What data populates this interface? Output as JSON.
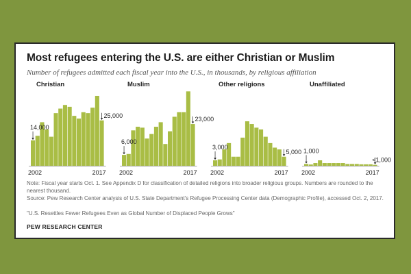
{
  "title": "Most refugees entering the U.S. are either Christian or Muslim",
  "subtitle": "Number of refugees admitted each fiscal year into the U.S., in thousands, by religious affiliation",
  "note": "Note: Fiscal year starts Oct. 1. See Appendix D for classification of detailed religions into broader religious groups. Numbers are rounded to the nearest thousand.",
  "source": "Source: Pew Research Center analysis of U.S. State Department's Refugee Processing Center data (Demographic Profile), accessed Oct. 2, 2017.",
  "report": "\"U.S. Resettles Fewer Refugees Even as Global Number of Displaced People Grows\"",
  "brand": "PEW RESEARCH CENTER",
  "colors": {
    "bar": "#a9bd45",
    "text": "#222222",
    "axis": "#888888",
    "background": "#7f963e"
  },
  "chart_data": [
    {
      "type": "bar",
      "title": "Christian",
      "x": [
        2002,
        2003,
        2004,
        2005,
        2006,
        2007,
        2008,
        2009,
        2010,
        2011,
        2012,
        2013,
        2014,
        2015,
        2016,
        2017
      ],
      "values": [
        14,
        16.5,
        24,
        20,
        16,
        29,
        31.5,
        33.5,
        32.5,
        27.5,
        26,
        29.5,
        29,
        32,
        38.5,
        25
      ],
      "annotations": [
        {
          "year": 2002,
          "label": "14,000"
        },
        {
          "year": 2017,
          "label": "25,000"
        }
      ],
      "xlabels": [
        "2002",
        "2017"
      ],
      "ylim": [
        0,
        40
      ]
    },
    {
      "type": "bar",
      "title": "Muslim",
      "x": [
        2002,
        2003,
        2004,
        2005,
        2006,
        2007,
        2008,
        2009,
        2010,
        2011,
        2012,
        2013,
        2014,
        2015,
        2016,
        2017
      ],
      "values": [
        6,
        6.5,
        19.5,
        21.5,
        21,
        15,
        17.5,
        21.5,
        24,
        12,
        19,
        27,
        29.5,
        29.5,
        41,
        23
      ],
      "annotations": [
        {
          "year": 2002,
          "label": "6,000"
        },
        {
          "year": 2017,
          "label": "23,000"
        }
      ],
      "xlabels": [
        "2002",
        "2017"
      ],
      "ylim": [
        0,
        40
      ]
    },
    {
      "type": "bar",
      "title": "Other religions",
      "x": [
        2002,
        2003,
        2004,
        2005,
        2006,
        2007,
        2008,
        2009,
        2010,
        2011,
        2012,
        2013,
        2014,
        2015,
        2016,
        2017
      ],
      "values": [
        3,
        3.5,
        9,
        12.5,
        5,
        5,
        15.5,
        24.5,
        23,
        21,
        20,
        16,
        12.5,
        10,
        9,
        5
      ],
      "annotations": [
        {
          "year": 2002,
          "label": "3,000"
        },
        {
          "year": 2017,
          "label": "5,000"
        }
      ],
      "xlabels": [
        "2002",
        "2017"
      ],
      "ylim": [
        0,
        40
      ]
    },
    {
      "type": "bar",
      "title": "Unaffiliated",
      "x": [
        2002,
        2003,
        2004,
        2005,
        2006,
        2007,
        2008,
        2009,
        2010,
        2011,
        2012,
        2013,
        2014,
        2015,
        2016,
        2017
      ],
      "values": [
        1,
        0.7,
        1.5,
        3,
        1.5,
        1.5,
        1.5,
        1.5,
        1.5,
        1,
        1,
        1,
        0.8,
        0.8,
        0.8,
        0.5
      ],
      "annotations": [
        {
          "year": 2002,
          "label": "1,000"
        },
        {
          "year": 2017,
          "label": "<1,000"
        }
      ],
      "xlabels": [
        "2002",
        "2017"
      ],
      "ylim": [
        0,
        40
      ]
    }
  ]
}
